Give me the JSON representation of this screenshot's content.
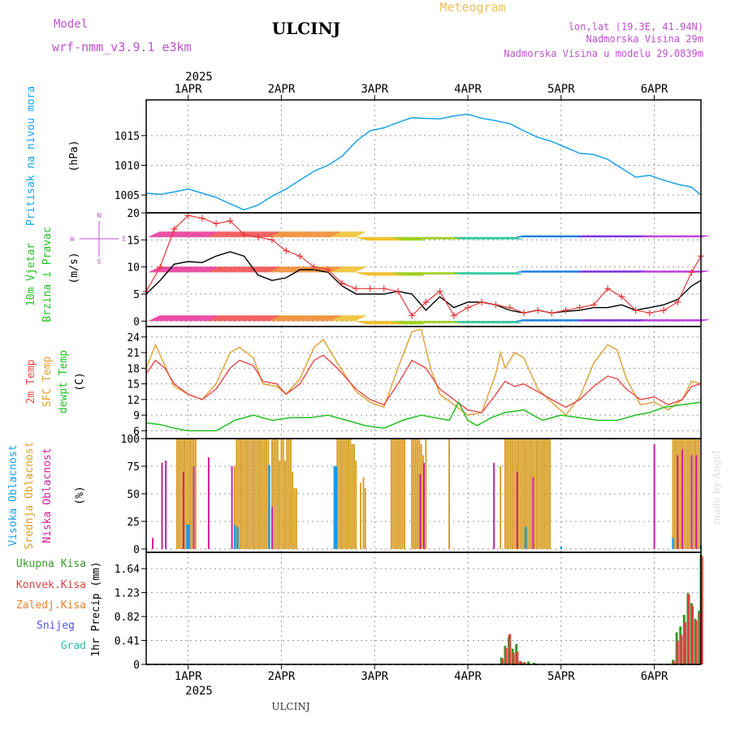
{
  "header": {
    "model_label": "Model",
    "model_name": "wrf-nmm_v3.9.1 e3km",
    "station": "ULCINJ",
    "title": "Meteogram",
    "coords": "lon,lat (19.3E, 41.94N)",
    "altitude": "Nadmorska Visina 29m",
    "model_altitude": "Nadmorska Visina u modelu 29.0839m"
  },
  "footer": {
    "station": "ULCINJ",
    "credit": "made by Angel"
  },
  "colors": {
    "pressure": "#1aa3e8",
    "wind_speed": "#000000",
    "gust": "#e83a3a",
    "temp2m": "#e84848",
    "sfc": "#e0a030",
    "dew": "#22c022",
    "high_cloud": "#1a9ce8",
    "mid_cloud": "#d8a02a",
    "low_cloud": "#d0209a",
    "total_precip": "#3a9a2a",
    "conv_precip": "#e04040",
    "frozen": "#f08030",
    "snow": "#5050e0",
    "grad": "#30c0b0",
    "label_magenta": "#c050d0",
    "label_orange": "#f0c060"
  },
  "chart_data": [
    {
      "id": "pressure",
      "type": "line",
      "ylabel_main": "Pritisak na nivou mora",
      "ylabel_unit": "(hPa)",
      "xlim": [
        0.55,
        6.5
      ],
      "ylim": [
        1002,
        1021
      ],
      "yticks": [
        1005,
        1010,
        1015
      ],
      "x_top_year": "2025",
      "x_ticks": [
        1,
        2,
        3,
        4,
        5,
        6
      ],
      "x_tick_labels": [
        "1APR",
        "2APR",
        "3APR",
        "4APR",
        "5APR",
        "6APR"
      ],
      "series": [
        {
          "name": "Pritisak",
          "x": [
            0.55,
            0.7,
            0.85,
            1.0,
            1.15,
            1.3,
            1.45,
            1.6,
            1.75,
            1.9,
            2.05,
            2.2,
            2.35,
            2.5,
            2.65,
            2.8,
            2.95,
            3.1,
            3.25,
            3.4,
            3.55,
            3.7,
            3.85,
            4.0,
            4.15,
            4.3,
            4.45,
            4.6,
            4.75,
            4.9,
            5.05,
            5.2,
            5.35,
            5.5,
            5.65,
            5.8,
            5.95,
            6.1,
            6.25,
            6.4,
            6.5
          ],
          "y": [
            1005.3,
            1005.1,
            1005.5,
            1006.0,
            1005.3,
            1004.6,
            1003.5,
            1002.5,
            1003.3,
            1004.8,
            1006.0,
            1007.5,
            1009.0,
            1010.0,
            1011.5,
            1014.0,
            1015.8,
            1016.3,
            1017.2,
            1018.0,
            1017.9,
            1017.8,
            1018.3,
            1018.6,
            1017.9,
            1017.5,
            1017.0,
            1015.8,
            1014.7,
            1014.0,
            1013.0,
            1012.0,
            1011.8,
            1011.0,
            1009.5,
            1008.0,
            1008.3,
            1007.5,
            1006.8,
            1006.3,
            1005.0
          ]
        }
      ]
    },
    {
      "id": "wind",
      "type": "line",
      "ylabel_main": "10m Vjetar",
      "ylabel_sub": "Brzina i Pravac",
      "ylabel_unit": "(m/s)",
      "compass": {
        "n": "N",
        "s": "S",
        "e": "E",
        "w": "W"
      },
      "xlim": [
        0.55,
        6.5
      ],
      "ylim": [
        -1,
        20
      ],
      "yticks": [
        0,
        5,
        10,
        15,
        20
      ],
      "series": [
        {
          "name": "Brzina",
          "x": [
            0.55,
            0.7,
            0.85,
            1.0,
            1.15,
            1.3,
            1.45,
            1.6,
            1.75,
            1.9,
            2.05,
            2.2,
            2.35,
            2.5,
            2.65,
            2.8,
            2.95,
            3.1,
            3.25,
            3.4,
            3.55,
            3.7,
            3.85,
            4.0,
            4.15,
            4.3,
            4.45,
            4.6,
            4.75,
            4.9,
            5.05,
            5.2,
            5.35,
            5.5,
            5.65,
            5.8,
            5.95,
            6.1,
            6.25,
            6.4,
            6.5
          ],
          "y": [
            5.0,
            7.5,
            10.5,
            11.0,
            10.8,
            12.0,
            12.8,
            12.0,
            8.5,
            7.5,
            8.0,
            9.5,
            9.5,
            9.0,
            6.5,
            5.0,
            5.0,
            5.0,
            5.5,
            5.0,
            2.0,
            4.5,
            2.5,
            3.5,
            3.5,
            3.0,
            2.0,
            1.5,
            2.0,
            1.5,
            1.8,
            2.0,
            2.5,
            2.5,
            3.0,
            2.0,
            2.5,
            3.0,
            4.0,
            6.5,
            7.5
          ]
        },
        {
          "name": "Udar",
          "x": [
            0.55,
            0.7,
            0.85,
            1.0,
            1.15,
            1.3,
            1.45,
            1.6,
            1.75,
            1.9,
            2.05,
            2.2,
            2.35,
            2.5,
            2.65,
            2.8,
            2.95,
            3.1,
            3.25,
            3.4,
            3.55,
            3.7,
            3.85,
            4.0,
            4.15,
            4.3,
            4.45,
            4.6,
            4.75,
            4.9,
            5.05,
            5.2,
            5.35,
            5.5,
            5.65,
            5.8,
            5.95,
            6.1,
            6.25,
            6.4,
            6.5
          ],
          "y": [
            5.5,
            10.0,
            17.0,
            19.5,
            19.0,
            18.0,
            18.5,
            16.0,
            15.5,
            15.0,
            13.0,
            12.0,
            10.0,
            9.5,
            7.0,
            6.0,
            6.0,
            6.0,
            5.5,
            1.0,
            3.5,
            5.5,
            1.0,
            2.5,
            3.5,
            3.0,
            2.5,
            1.5,
            2.0,
            1.5,
            2.0,
            2.5,
            3.0,
            6.0,
            4.5,
            2.0,
            1.5,
            2.0,
            3.5,
            9.0,
            12.0
          ]
        }
      ]
    },
    {
      "id": "temp",
      "type": "line",
      "ylabel_1": "2m Temp",
      "ylabel_2": "SFC Temp",
      "ylabel_3": "dewpt Temp",
      "ylabel_unit": "(C)",
      "xlim": [
        0.55,
        6.5
      ],
      "ylim": [
        4.5,
        26
      ],
      "yticks": [
        6,
        9,
        12,
        15,
        18,
        21,
        24
      ],
      "series": [
        {
          "name": "2m Temp",
          "x": [
            0.55,
            0.65,
            0.75,
            0.85,
            1.0,
            1.15,
            1.3,
            1.45,
            1.55,
            1.7,
            1.8,
            1.95,
            2.05,
            2.2,
            2.35,
            2.45,
            2.6,
            2.8,
            2.95,
            3.1,
            3.25,
            3.4,
            3.55,
            3.7,
            3.85,
            4.0,
            4.15,
            4.3,
            4.4,
            4.5,
            4.6,
            4.75,
            4.9,
            5.05,
            5.2,
            5.35,
            5.5,
            5.6,
            5.7,
            5.85,
            6.0,
            6.15,
            6.3,
            6.4,
            6.5
          ],
          "y": [
            17,
            19.5,
            18,
            15,
            13,
            12,
            14,
            18,
            19.5,
            18.5,
            15.5,
            15,
            13,
            15,
            19.5,
            20.5,
            18,
            14,
            12,
            11,
            15,
            19.5,
            18,
            14,
            12,
            10,
            9.5,
            13,
            15.5,
            14.5,
            15,
            13.5,
            12,
            10.5,
            12,
            14.5,
            16.5,
            16,
            14,
            12,
            12.5,
            11,
            12,
            14.5,
            15
          ]
        },
        {
          "name": "SFC Temp",
          "x": [
            0.55,
            0.65,
            0.75,
            0.85,
            1.0,
            1.15,
            1.3,
            1.45,
            1.55,
            1.7,
            1.8,
            1.95,
            2.05,
            2.2,
            2.35,
            2.45,
            2.6,
            2.8,
            2.95,
            3.1,
            3.25,
            3.4,
            3.5,
            3.6,
            3.7,
            3.85,
            4.0,
            4.15,
            4.3,
            4.35,
            4.4,
            4.5,
            4.6,
            4.75,
            4.9,
            5.05,
            5.2,
            5.35,
            5.5,
            5.6,
            5.7,
            5.85,
            6.0,
            6.15,
            6.3,
            6.4,
            6.5
          ],
          "y": [
            18,
            22.5,
            18.5,
            14.5,
            13,
            12,
            15,
            21,
            22,
            20,
            15,
            14.5,
            13,
            16,
            22,
            23.5,
            19,
            13.5,
            11.5,
            10.5,
            18,
            25,
            25.5,
            18,
            13,
            11,
            9,
            9.5,
            17,
            21,
            18,
            21,
            20,
            14,
            11.5,
            9,
            12.5,
            19,
            22.5,
            21.5,
            16,
            11,
            11.5,
            10,
            12,
            15.5,
            15
          ]
        },
        {
          "name": "dewpt Temp",
          "x": [
            0.55,
            0.7,
            0.85,
            1.0,
            1.15,
            1.3,
            1.5,
            1.7,
            1.9,
            2.1,
            2.3,
            2.5,
            2.7,
            2.9,
            3.1,
            3.3,
            3.5,
            3.65,
            3.8,
            3.9,
            4.0,
            4.1,
            4.25,
            4.4,
            4.6,
            4.8,
            5.0,
            5.2,
            5.4,
            5.6,
            5.8,
            5.95,
            6.1,
            6.3,
            6.5
          ],
          "y": [
            7.5,
            7.2,
            6.5,
            6.0,
            6.0,
            6.0,
            8.0,
            9.0,
            8.0,
            8.5,
            8.5,
            9.0,
            8.0,
            7.0,
            6.5,
            8.0,
            9.0,
            8.5,
            8.0,
            11.5,
            8.0,
            7.0,
            8.5,
            9.5,
            10.0,
            8.0,
            9.0,
            8.5,
            8.0,
            8.0,
            9.0,
            9.5,
            10.5,
            11.0,
            11.5
          ]
        }
      ]
    },
    {
      "id": "cloud",
      "type": "bar",
      "ylabel_1": "Visoka Oblacnost",
      "ylabel_2": "Srednja Oblacnost",
      "ylabel_3": "Niska Oblacnost",
      "ylabel_unit": "(%)",
      "xlim": [
        0.55,
        6.5
      ],
      "ylim": [
        -3,
        100
      ],
      "yticks": [
        0,
        25,
        50,
        75,
        100
      ],
      "series": [
        {
          "name": "Srednja",
          "x": [
            0.88,
            0.9,
            0.92,
            0.94,
            0.96,
            0.98,
            1.0,
            1.02,
            1.04,
            1.06,
            1.08,
            1.5,
            1.52,
            1.54,
            1.56,
            1.58,
            1.6,
            1.62,
            1.64,
            1.66,
            1.68,
            1.7,
            1.72,
            1.74,
            1.76,
            1.78,
            1.8,
            1.82,
            1.84,
            1.86,
            1.9,
            1.92,
            1.94,
            1.96,
            1.98,
            2.0,
            2.02,
            2.04,
            2.06,
            2.08,
            2.1,
            2.12,
            2.14,
            2.16,
            2.6,
            2.62,
            2.64,
            2.66,
            2.68,
            2.7,
            2.72,
            2.74,
            2.76,
            2.78,
            2.8,
            2.85,
            2.88,
            2.9,
            3.18,
            3.2,
            3.22,
            3.24,
            3.26,
            3.28,
            3.3,
            3.32,
            3.4,
            3.42,
            3.44,
            3.46,
            3.48,
            3.5,
            3.52,
            3.55,
            3.8,
            4.35,
            4.4,
            4.42,
            4.44,
            4.46,
            4.48,
            4.5,
            4.52,
            4.54,
            4.56,
            4.58,
            4.6,
            4.62,
            4.64,
            4.66,
            4.68,
            4.7,
            4.72,
            4.74,
            4.76,
            4.78,
            4.8,
            4.82,
            4.84,
            4.86,
            4.88,
            6.2,
            6.22,
            6.24,
            6.26,
            6.28,
            6.3,
            6.32,
            6.34,
            6.36,
            6.38,
            6.4,
            6.42,
            6.44,
            6.46,
            6.48
          ],
          "y": [
            100,
            100,
            100,
            100,
            100,
            100,
            100,
            100,
            100,
            100,
            100,
            75,
            100,
            100,
            100,
            100,
            100,
            100,
            100,
            100,
            100,
            100,
            100,
            100,
            100,
            100,
            100,
            100,
            100,
            100,
            100,
            100,
            100,
            100,
            80,
            100,
            100,
            80,
            100,
            100,
            100,
            70,
            55,
            55,
            100,
            100,
            100,
            100,
            100,
            100,
            100,
            100,
            95,
            95,
            80,
            60,
            65,
            55,
            100,
            100,
            100,
            100,
            100,
            100,
            100,
            100,
            100,
            100,
            100,
            100,
            100,
            95,
            85,
            100,
            100,
            75,
            100,
            100,
            100,
            100,
            100,
            100,
            100,
            100,
            100,
            100,
            100,
            100,
            100,
            100,
            100,
            100,
            100,
            100,
            100,
            100,
            100,
            100,
            100,
            100,
            100,
            100,
            100,
            100,
            100,
            100,
            100,
            100,
            100,
            100,
            100,
            100,
            100,
            100,
            100,
            100
          ]
        },
        {
          "name": "Niska",
          "x": [
            0.62,
            0.72,
            0.76,
            0.95,
            1.06,
            1.22,
            1.47,
            1.9,
            3.49,
            3.53,
            4.28,
            4.53,
            4.7,
            6.0,
            6.25,
            6.3,
            6.4,
            6.45
          ],
          "y": [
            10,
            78,
            80,
            70,
            75,
            83,
            75,
            38,
            68,
            78,
            78,
            70,
            65,
            95,
            85,
            90,
            85,
            85
          ]
        },
        {
          "name": "Visoka",
          "x": [
            0.99,
            1.0,
            1.01,
            1.5,
            1.53,
            1.87,
            2.57,
            2.58,
            2.59,
            4.62,
            5.0,
            6.2,
            6.5
          ],
          "y": [
            22,
            22,
            22,
            22,
            20,
            76,
            75,
            75,
            75,
            20,
            2,
            10,
            3
          ]
        }
      ]
    },
    {
      "id": "precip",
      "type": "bar",
      "ylabel_main": "1hr Precip (mm)",
      "legend": [
        "Ukupna Kisa",
        "Konvek.Kisa",
        "Zaledj.Kisa",
        "Snijeg",
        "Grad"
      ],
      "xlim": [
        0.55,
        6.5
      ],
      "ylim": [
        0,
        1.92
      ],
      "yticks": [
        0,
        0.41,
        0.82,
        1.23,
        1.64
      ],
      "x_ticks": [
        1,
        2,
        3,
        4,
        5,
        6
      ],
      "x_tick_labels": [
        "1APR",
        "2APR",
        "3APR",
        "4APR",
        "5APR",
        "6APR"
      ],
      "x_bottom_year": "2025",
      "series": [
        {
          "name": "Ukupna Kisa",
          "x": [
            4.36,
            4.4,
            4.44,
            4.48,
            4.52,
            4.56,
            4.6,
            4.65,
            4.71,
            6.2,
            6.24,
            6.28,
            6.32,
            6.36,
            6.4,
            6.44,
            6.48,
            6.5
          ],
          "y": [
            0.12,
            0.32,
            0.48,
            0.27,
            0.35,
            0.06,
            0.04,
            0.05,
            0.03,
            0.08,
            0.55,
            0.65,
            0.85,
            1.22,
            1.05,
            0.78,
            0.92,
            1.88
          ]
        },
        {
          "name": "Konvek.Kisa",
          "x": [
            4.37,
            4.41,
            4.45,
            4.49,
            4.53,
            4.57,
            4.61,
            6.21,
            6.25,
            6.29,
            6.33,
            6.37,
            6.41,
            6.45,
            6.49,
            6.51
          ],
          "y": [
            0.1,
            0.28,
            0.52,
            0.2,
            0.22,
            0.05,
            0.03,
            0.06,
            0.4,
            0.5,
            0.72,
            1.2,
            1.0,
            0.75,
            0.88,
            1.85
          ]
        }
      ]
    }
  ]
}
